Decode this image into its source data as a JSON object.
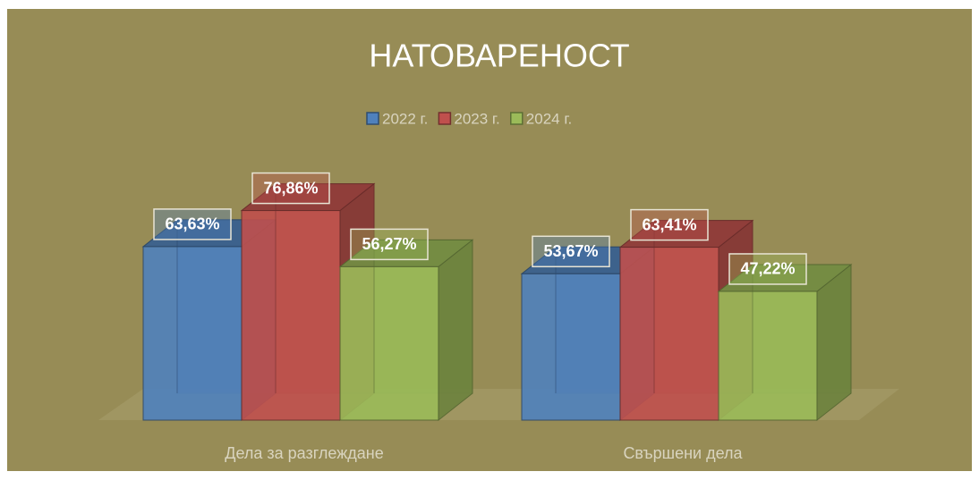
{
  "chart_data": {
    "type": "bar",
    "title": "НАТОВАРЕНОСТ",
    "categories": [
      "Дела за разглеждане",
      "Свършени дела"
    ],
    "series": [
      {
        "name": "2022 г.",
        "color": "#4f81bd",
        "values": [
          63.63,
          53.67
        ],
        "value_labels": [
          "63,63%",
          "53,67%"
        ]
      },
      {
        "name": "2023 г.",
        "color": "#c0504d",
        "values": [
          76.86,
          63.41
        ],
        "value_labels": [
          "76,86%",
          "63,41%"
        ]
      },
      {
        "name": "2024 г.",
        "color": "#9bbb59",
        "values": [
          56.27,
          47.22
        ],
        "value_labels": [
          "56,27%",
          "47,22%"
        ]
      }
    ],
    "legend": "top"
  }
}
